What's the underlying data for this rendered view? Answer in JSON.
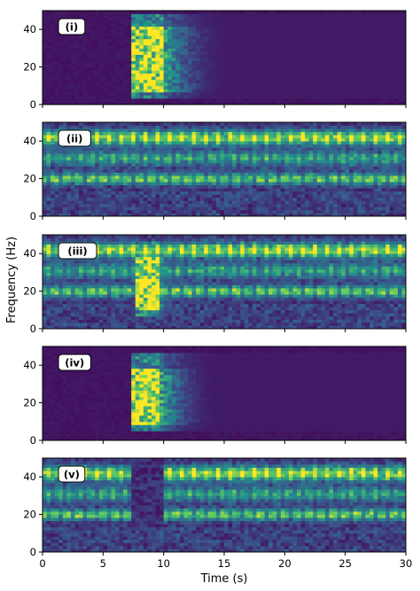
{
  "chart_data": {
    "type": "heatmap",
    "colormap": "viridis",
    "colormap_stops": [
      "#440154",
      "#3b528b",
      "#21918c",
      "#5ec962",
      "#fde725"
    ],
    "xlabel": "Time (s)",
    "ylabel": "Frequency (Hz)",
    "xlim": [
      0,
      30
    ],
    "ylim": [
      0,
      50
    ],
    "xticks": [
      0,
      5,
      10,
      15,
      20,
      25,
      30
    ],
    "yticks": [
      0,
      20,
      40
    ],
    "panels": [
      {
        "tag": "(i)",
        "background": "quiet",
        "bands": [],
        "burst": {
          "onset": 7.5,
          "peak_end": 10,
          "fade_end": 16,
          "freq_range": [
            4,
            48
          ],
          "core_freq_range": [
            6,
            42
          ]
        }
      },
      {
        "tag": "(ii)",
        "background": "noisy",
        "bands": [
          {
            "freq": 42,
            "width": 2.5,
            "pulse_period": 1.0,
            "strength": 1.0
          },
          {
            "freq": 31,
            "width": 2.5,
            "pulse_period": 0.9,
            "strength": 0.55
          },
          {
            "freq": 20,
            "width": 2.0,
            "pulse_period": 0.5,
            "strength": 0.75
          }
        ],
        "burst": null
      },
      {
        "tag": "(iii)",
        "background": "noisy",
        "bands": [
          {
            "freq": 42,
            "width": 2.5,
            "pulse_period": 1.0,
            "strength": 1.0
          },
          {
            "freq": 31,
            "width": 2.5,
            "pulse_period": 0.9,
            "strength": 0.55
          },
          {
            "freq": 20,
            "width": 2.0,
            "pulse_period": 0.5,
            "strength": 0.75
          }
        ],
        "burst": {
          "onset": 7.7,
          "peak_end": 9.6,
          "fade_end": 12,
          "freq_range": [
            6,
            46
          ],
          "core_freq_range": [
            10,
            38
          ]
        }
      },
      {
        "tag": "(iv)",
        "background": "quiet",
        "bands": [],
        "burst": {
          "onset": 7.5,
          "peak_end": 9.8,
          "fade_end": 15,
          "freq_range": [
            5,
            46
          ],
          "core_freq_range": [
            8,
            38
          ]
        }
      },
      {
        "tag": "(v)",
        "background": "noisy",
        "bands": [
          {
            "freq": 42,
            "width": 2.5,
            "pulse_period": 1.0,
            "strength": 1.0,
            "gap": [
              7.5,
              10
            ]
          },
          {
            "freq": 31,
            "width": 2.5,
            "pulse_period": 0.9,
            "strength": 0.55,
            "gap": [
              7.5,
              10
            ]
          },
          {
            "freq": 20,
            "width": 2.0,
            "pulse_period": 0.5,
            "strength": 0.75,
            "gap": [
              7.5,
              10
            ]
          }
        ],
        "burst": null
      }
    ]
  }
}
